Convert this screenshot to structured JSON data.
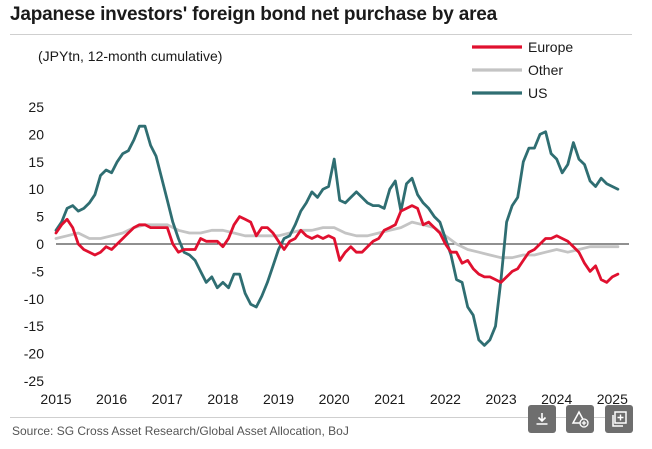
{
  "title": "Japanese investors' foreign bond net purchase by area",
  "source": "Source: SG Cross Asset Research/Global Asset Allocation, BoJ",
  "toolbar": {
    "icons": [
      "download-icon",
      "shapes-add-icon",
      "copy-add-icon"
    ]
  },
  "colors": {
    "Europe": "#e0102f",
    "Other": "#c4c4c4",
    "US": "#2f6e72"
  },
  "chart_data": {
    "type": "line",
    "unit_label": "(JPYtn, 12-month cumulative)",
    "ylim": [
      -25,
      25
    ],
    "yticks": [
      25,
      20,
      15,
      10,
      5,
      0,
      -5,
      -10,
      -15,
      -20,
      -25
    ],
    "xlim": [
      2015.0,
      2025.3
    ],
    "xticks": [
      2015,
      2016,
      2017,
      2018,
      2019,
      2020,
      2021,
      2022,
      2023,
      2024,
      2025
    ],
    "legend_position": "top-right",
    "grid": false,
    "series": [
      {
        "name": "Europe",
        "x": [
          2015.0,
          2015.1,
          2015.2,
          2015.3,
          2015.4,
          2015.5,
          2015.6,
          2015.7,
          2015.8,
          2015.9,
          2016.0,
          2016.1,
          2016.2,
          2016.3,
          2016.4,
          2016.5,
          2016.6,
          2016.7,
          2016.8,
          2016.9,
          2017.0,
          2017.1,
          2017.2,
          2017.3,
          2017.4,
          2017.5,
          2017.6,
          2017.7,
          2017.8,
          2017.9,
          2018.0,
          2018.1,
          2018.2,
          2018.3,
          2018.4,
          2018.5,
          2018.6,
          2018.7,
          2018.8,
          2018.9,
          2019.0,
          2019.1,
          2019.2,
          2019.3,
          2019.4,
          2019.5,
          2019.6,
          2019.7,
          2019.8,
          2019.9,
          2020.0,
          2020.1,
          2020.2,
          2020.3,
          2020.4,
          2020.5,
          2020.6,
          2020.7,
          2020.8,
          2020.9,
          2021.0,
          2021.1,
          2021.2,
          2021.3,
          2021.4,
          2021.5,
          2021.6,
          2021.7,
          2021.8,
          2021.9,
          2022.0,
          2022.1,
          2022.2,
          2022.3,
          2022.4,
          2022.5,
          2022.6,
          2022.7,
          2022.8,
          2022.9,
          2023.0,
          2023.1,
          2023.2,
          2023.3,
          2023.4,
          2023.5,
          2023.6,
          2023.7,
          2023.8,
          2023.9,
          2024.0,
          2024.1,
          2024.2,
          2024.3,
          2024.4,
          2024.5,
          2024.6,
          2024.7,
          2024.8,
          2024.9,
          2025.0,
          2025.1
        ],
        "values": [
          2.0,
          3.5,
          4.5,
          3.0,
          0.0,
          -1.0,
          -1.5,
          -2.0,
          -1.5,
          -0.5,
          -1.0,
          0.0,
          1.0,
          2.0,
          3.0,
          3.5,
          3.5,
          3.0,
          3.0,
          3.0,
          3.0,
          0.0,
          -1.5,
          -1.0,
          -1.0,
          -1.0,
          1.0,
          0.5,
          0.5,
          0.5,
          -0.5,
          1.0,
          3.5,
          5.0,
          4.5,
          4.0,
          1.5,
          3.0,
          3.0,
          2.0,
          0.5,
          -1.0,
          0.5,
          1.0,
          2.5,
          1.5,
          1.0,
          1.5,
          1.0,
          1.5,
          1.0,
          -3.0,
          -1.5,
          -0.5,
          -1.5,
          -1.5,
          -0.5,
          0.5,
          1.0,
          2.5,
          3.0,
          3.5,
          6.0,
          6.5,
          7.0,
          6.5,
          3.5,
          4.0,
          3.0,
          2.0,
          0.0,
          -1.5,
          -1.5,
          -3.5,
          -3.0,
          -4.5,
          -5.5,
          -6.0,
          -6.0,
          -6.5,
          -7.0,
          -6.0,
          -5.0,
          -4.5,
          -3.0,
          -1.5,
          -1.0,
          0.0,
          1.0,
          1.0,
          1.5,
          1.0,
          0.5,
          -0.5,
          -1.5,
          -3.5,
          -5.0,
          -4.0,
          -6.5,
          -7.0,
          -6.0,
          -5.5
        ]
      },
      {
        "name": "Other",
        "x": [
          2015.0,
          2015.2,
          2015.4,
          2015.6,
          2015.8,
          2016.0,
          2016.2,
          2016.4,
          2016.6,
          2016.8,
          2017.0,
          2017.2,
          2017.4,
          2017.6,
          2017.8,
          2018.0,
          2018.2,
          2018.4,
          2018.6,
          2018.8,
          2019.0,
          2019.2,
          2019.4,
          2019.6,
          2019.8,
          2020.0,
          2020.2,
          2020.4,
          2020.6,
          2020.8,
          2021.0,
          2021.2,
          2021.4,
          2021.6,
          2021.8,
          2022.0,
          2022.2,
          2022.4,
          2022.6,
          2022.8,
          2023.0,
          2023.2,
          2023.4,
          2023.6,
          2023.8,
          2024.0,
          2024.2,
          2024.4,
          2024.6,
          2024.8,
          2025.0,
          2025.1
        ],
        "values": [
          1.0,
          1.5,
          2.0,
          1.0,
          1.0,
          1.5,
          2.0,
          3.0,
          3.5,
          3.5,
          3.5,
          2.5,
          2.0,
          2.0,
          2.5,
          2.5,
          2.0,
          1.5,
          1.5,
          1.5,
          1.5,
          2.0,
          2.5,
          2.5,
          3.0,
          3.0,
          2.0,
          1.5,
          1.5,
          2.0,
          2.5,
          3.0,
          4.0,
          3.5,
          3.0,
          1.5,
          0.0,
          -1.0,
          -1.5,
          -2.0,
          -2.5,
          -2.5,
          -2.0,
          -2.0,
          -1.5,
          -1.0,
          -1.5,
          -1.0,
          -0.5,
          -0.5,
          -0.5,
          -0.5
        ]
      },
      {
        "name": "US",
        "x": [
          2015.0,
          2015.1,
          2015.2,
          2015.3,
          2015.4,
          2015.5,
          2015.6,
          2015.7,
          2015.8,
          2015.9,
          2016.0,
          2016.1,
          2016.2,
          2016.3,
          2016.4,
          2016.5,
          2016.6,
          2016.7,
          2016.8,
          2016.9,
          2017.0,
          2017.1,
          2017.2,
          2017.3,
          2017.4,
          2017.5,
          2017.6,
          2017.7,
          2017.8,
          2017.9,
          2018.0,
          2018.1,
          2018.2,
          2018.3,
          2018.4,
          2018.5,
          2018.6,
          2018.7,
          2018.8,
          2018.9,
          2019.0,
          2019.1,
          2019.2,
          2019.3,
          2019.4,
          2019.5,
          2019.6,
          2019.7,
          2019.8,
          2019.9,
          2020.0,
          2020.1,
          2020.2,
          2020.3,
          2020.4,
          2020.5,
          2020.6,
          2020.7,
          2020.8,
          2020.9,
          2021.0,
          2021.1,
          2021.2,
          2021.3,
          2021.4,
          2021.5,
          2021.6,
          2021.7,
          2021.8,
          2021.9,
          2022.0,
          2022.1,
          2022.2,
          2022.3,
          2022.4,
          2022.5,
          2022.6,
          2022.7,
          2022.8,
          2022.9,
          2023.0,
          2023.1,
          2023.2,
          2023.3,
          2023.4,
          2023.5,
          2023.6,
          2023.7,
          2023.8,
          2023.9,
          2024.0,
          2024.1,
          2024.2,
          2024.3,
          2024.4,
          2024.5,
          2024.6,
          2024.7,
          2024.8,
          2024.9,
          2025.0,
          2025.1
        ],
        "values": [
          2.5,
          4.0,
          6.5,
          7.0,
          6.0,
          6.5,
          7.5,
          9.0,
          12.5,
          13.5,
          13.0,
          15.0,
          16.5,
          17.0,
          19.0,
          21.5,
          21.5,
          18.0,
          16.0,
          12.0,
          8.0,
          4.0,
          1.0,
          -1.5,
          -2.0,
          -3.0,
          -5.0,
          -7.0,
          -6.0,
          -8.0,
          -7.0,
          -8.0,
          -5.5,
          -5.5,
          -9.0,
          -11.0,
          -11.5,
          -9.5,
          -7.0,
          -4.0,
          -1.0,
          1.0,
          1.5,
          3.5,
          6.0,
          7.5,
          9.5,
          8.5,
          10.0,
          10.5,
          15.5,
          8.0,
          7.5,
          8.5,
          9.5,
          8.5,
          7.5,
          7.0,
          7.0,
          6.5,
          10.0,
          11.5,
          6.0,
          11.0,
          12.0,
          9.0,
          7.5,
          6.5,
          5.0,
          4.0,
          1.0,
          -2.0,
          -6.5,
          -7.0,
          -11.5,
          -13.0,
          -17.5,
          -18.5,
          -17.5,
          -15.0,
          -6.5,
          4.0,
          7.0,
          8.5,
          15.0,
          17.5,
          17.5,
          20.0,
          20.5,
          16.5,
          15.5,
          13.0,
          14.5,
          18.5,
          15.5,
          14.5,
          11.5,
          10.5,
          12.0,
          11.0,
          10.5,
          10.0
        ]
      }
    ]
  }
}
